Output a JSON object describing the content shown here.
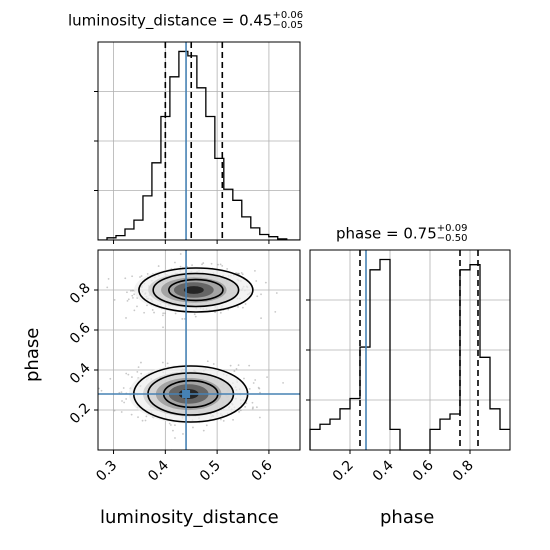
{
  "chart_data": {
    "type": "corner",
    "parameters": [
      "luminosity_distance",
      "phase"
    ],
    "truth": {
      "luminosity_distance": 0.44,
      "phase": 0.28
    },
    "colors": {
      "truth": "#4682b4",
      "hist": "#000000",
      "grid": "#b0b0b0"
    },
    "grid": true,
    "titles": {
      "luminosity_distance": {
        "name": "luminosity_distance",
        "value": "0.45",
        "plus": "+0.06",
        "minus": "−0.05"
      },
      "phase": {
        "name": "phase",
        "value": "0.75",
        "plus": "+0.09",
        "minus": "−0.50"
      }
    },
    "axis_labels": {
      "x1": "luminosity_distance",
      "x2": "phase",
      "y": "phase"
    },
    "luminosity_distance_marginal": {
      "xlim": [
        0.27,
        0.66
      ],
      "quantiles": [
        0.4,
        0.45,
        0.51
      ],
      "xticks": [
        0.3,
        0.4,
        0.5,
        0.6
      ],
      "xticklabels": [
        "0.3",
        "0.4",
        "0.5",
        "0.6"
      ],
      "bin_edges": [
        0.27,
        0.2874,
        0.3047,
        0.3221,
        0.3394,
        0.3568,
        0.3741,
        0.3915,
        0.4088,
        0.4262,
        0.4435,
        0.4609,
        0.4782,
        0.4956,
        0.5129,
        0.5303,
        0.5476,
        0.565,
        0.5823,
        0.5997,
        0.617,
        0.6344,
        0.66
      ],
      "counts": [
        0,
        2,
        4,
        10,
        18,
        40,
        70,
        112,
        148,
        171,
        167,
        138,
        112,
        74,
        46,
        36,
        21,
        11,
        5,
        3,
        1,
        0
      ]
    },
    "phase_marginal": {
      "xlim": [
        0.0,
        1.0
      ],
      "quantiles": [
        0.25,
        0.75,
        0.84
      ],
      "xticks": [
        0.2,
        0.4,
        0.6,
        0.8
      ],
      "xticklabels": [
        "0.2",
        "0.4",
        "0.6",
        "0.8"
      ],
      "bin_edges": [
        0.0,
        0.05,
        0.1,
        0.15,
        0.2,
        0.25,
        0.3,
        0.35,
        0.4,
        0.45,
        0.5,
        0.55,
        0.6,
        0.65,
        0.7,
        0.75,
        0.8,
        0.85,
        0.9,
        0.95,
        1.0
      ],
      "counts": [
        4,
        5,
        6,
        8,
        10,
        20,
        35,
        37,
        4,
        0,
        0,
        0,
        4,
        6,
        7,
        35,
        36,
        18,
        8,
        4
      ]
    },
    "joint": {
      "xlim": [
        0.27,
        0.66
      ],
      "ylim": [
        0.0,
        1.0
      ],
      "xticks": [
        0.3,
        0.4,
        0.5,
        0.6
      ],
      "xticklabels": [
        "0.3",
        "0.4",
        "0.5",
        "0.6"
      ],
      "yticks": [
        0.2,
        0.4,
        0.6,
        0.8
      ],
      "yticklabels": [
        "0.2",
        "0.4",
        "0.6",
        "0.8"
      ],
      "modes": [
        {
          "cx": 0.455,
          "cy": 0.8,
          "sx": 0.055,
          "sy": 0.055
        },
        {
          "cx": 0.445,
          "cy": 0.28,
          "sx": 0.055,
          "sy": 0.07
        }
      ]
    }
  }
}
